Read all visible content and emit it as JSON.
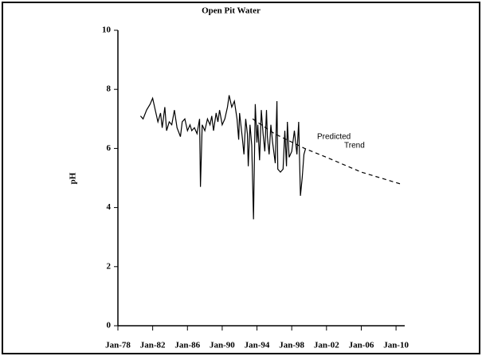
{
  "chart_data": {
    "type": "line",
    "title": "Open Pit Water",
    "ylabel": "pH",
    "xlim": [
      1978,
      2011
    ],
    "ylim": [
      0,
      10
    ],
    "xticks": [
      {
        "value": 1978,
        "label": "Jan-78"
      },
      {
        "value": 1982,
        "label": "Jan-82"
      },
      {
        "value": 1986,
        "label": "Jan-86"
      },
      {
        "value": 1990,
        "label": "Jan-90"
      },
      {
        "value": 1994,
        "label": "Jan-94"
      },
      {
        "value": 1998,
        "label": "Jan-98"
      },
      {
        "value": 2002,
        "label": "Jan-02"
      },
      {
        "value": 2006,
        "label": "Jan-06"
      },
      {
        "value": 2010,
        "label": "Jan-10"
      }
    ],
    "yticks": [
      0,
      2,
      4,
      6,
      8,
      10
    ],
    "annotations": [
      "Predicted",
      "Trend"
    ],
    "series": [
      {
        "color": "#000000",
        "dash": false,
        "x": [
          1980.6,
          1980.9,
          1981.3,
          1981.7,
          1982.0,
          1982.3,
          1982.6,
          1982.9,
          1983.1,
          1983.4,
          1983.6,
          1983.9,
          1984.2,
          1984.5,
          1984.8,
          1985.2,
          1985.4,
          1985.7,
          1986.0,
          1986.3,
          1986.5,
          1986.8,
          1987.1,
          1987.4,
          1987.5,
          1987.7,
          1988.0,
          1988.3,
          1988.6,
          1988.8,
          1989.0,
          1989.3,
          1989.5,
          1989.7,
          1990.0,
          1990.3,
          1990.6,
          1990.8,
          1991.1,
          1991.4,
          1991.7,
          1991.9,
          1992.0,
          1992.3,
          1992.5,
          1992.7,
          1992.9,
          1993.0,
          1993.2,
          1993.4,
          1993.6,
          1993.8,
          1994.0,
          1994.1,
          1994.3,
          1994.5,
          1994.7,
          1994.9,
          1995.1,
          1995.2,
          1995.4,
          1995.6,
          1995.8,
          1996.1,
          1996.3,
          1996.4,
          1996.7,
          1997.0,
          1997.2,
          1997.4,
          1997.5,
          1997.7,
          1998.0,
          1998.3,
          1998.6,
          1998.8,
          1999.0,
          1999.2,
          1999.4,
          1999.6
        ],
        "values": [
          7.1,
          7.0,
          7.3,
          7.5,
          7.7,
          7.3,
          6.9,
          7.2,
          6.7,
          7.4,
          6.6,
          6.9,
          6.8,
          7.3,
          6.7,
          6.4,
          6.9,
          7.0,
          6.6,
          6.8,
          6.6,
          6.7,
          6.5,
          7.0,
          4.7,
          6.8,
          6.6,
          7.0,
          6.8,
          7.1,
          6.6,
          7.2,
          6.9,
          7.3,
          6.8,
          7.0,
          7.4,
          7.8,
          7.4,
          7.6,
          7.0,
          6.3,
          7.2,
          6.4,
          5.8,
          7.0,
          6.5,
          5.4,
          6.8,
          6.1,
          3.6,
          7.5,
          6.2,
          6.8,
          5.6,
          7.3,
          6.5,
          5.9,
          7.3,
          6.4,
          5.8,
          6.8,
          6.2,
          5.5,
          7.6,
          5.3,
          5.2,
          5.3,
          6.6,
          5.4,
          6.9,
          5.7,
          5.9,
          6.6,
          5.8,
          6.9,
          4.4,
          5.0,
          5.8,
          6.0
        ]
      },
      {
        "color": "#000000",
        "dash": true,
        "x": [
          1993.5,
          1996,
          1999.5,
          2002,
          2006,
          2010.5
        ],
        "values": [
          7.0,
          6.5,
          6.0,
          5.7,
          5.2,
          4.8
        ]
      }
    ]
  }
}
